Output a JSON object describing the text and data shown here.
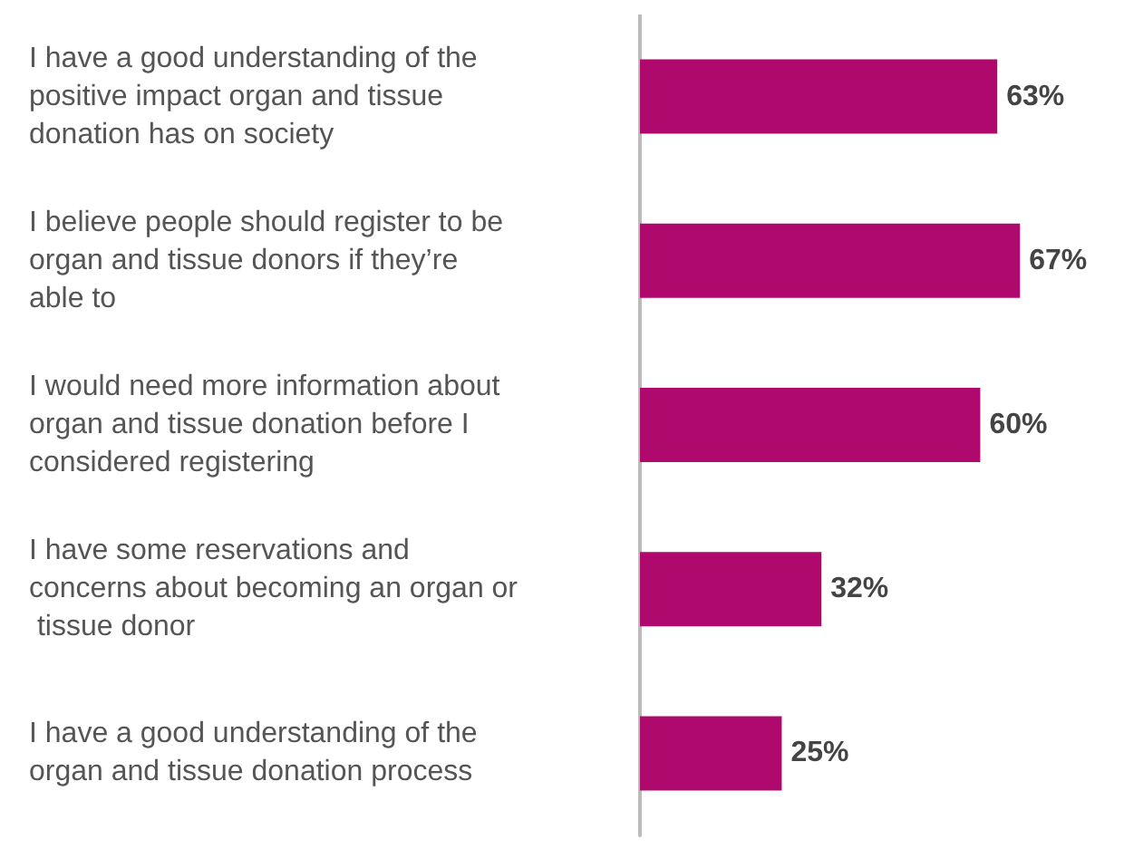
{
  "chart_data": {
    "type": "bar",
    "orientation": "horizontal",
    "categories": [
      "I have a good understanding of the positive impact organ and tissue donation has on society",
      "I believe people should register to be organ and tissue donors if they’re able to",
      "I would need more information about organ and tissue donation before I considered registering",
      "I have some reservations and concerns about becoming an organ or tissue donor",
      "I have a good understanding of the organ and tissue donation process"
    ],
    "values": [
      63,
      67,
      60,
      32,
      25
    ],
    "value_labels": [
      "63%",
      "67%",
      "60%",
      "32%",
      "25%"
    ],
    "color": "#b0096e",
    "grid": false
  }
}
